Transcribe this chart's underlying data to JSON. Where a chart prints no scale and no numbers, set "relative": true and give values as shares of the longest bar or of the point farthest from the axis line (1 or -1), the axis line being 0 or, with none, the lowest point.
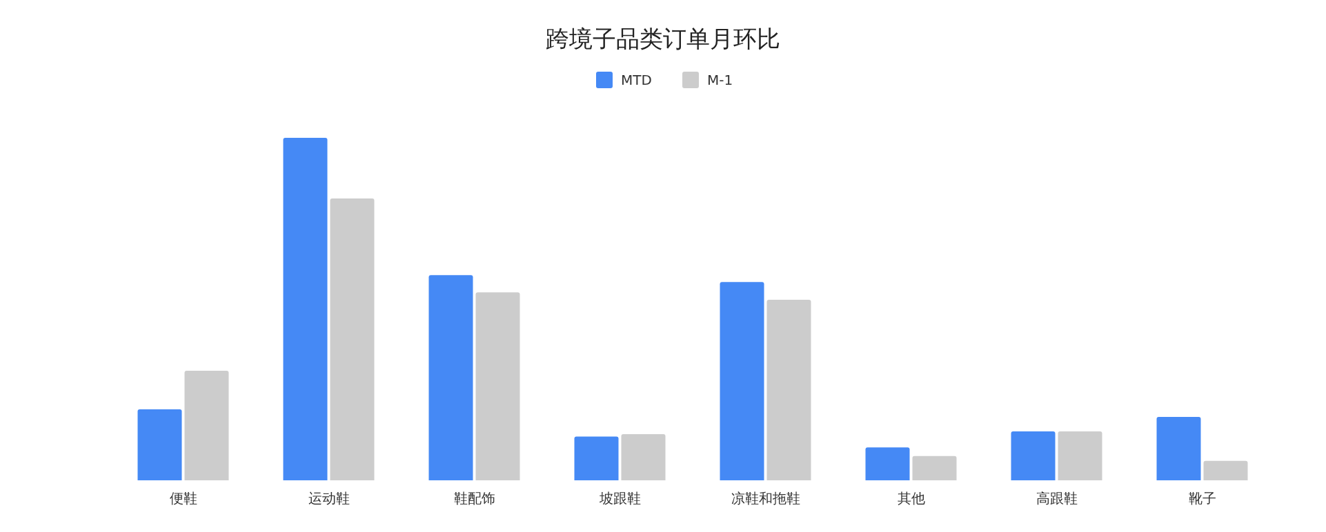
{
  "chart_data": {
    "type": "bar",
    "title": "跨境子品类订单月环比",
    "relative": true,
    "legend": "top",
    "categories": [
      "便鞋",
      "运动鞋",
      "鞋配饰",
      "坡跟鞋",
      "凉鞋和拖鞋",
      "其他",
      "高跟鞋",
      "靴子"
    ],
    "series": [
      {
        "name": "MTD",
        "color": "#4589f5",
        "values": [
          0.207,
          1,
          0.599,
          0.128,
          0.579,
          0.096,
          0.143,
          0.185
        ]
      },
      {
        "name": "M-1",
        "color": "#cccccc",
        "values": [
          0.32,
          0.823,
          0.549,
          0.135,
          0.527,
          0.071,
          0.143,
          0.057
        ]
      }
    ]
  }
}
